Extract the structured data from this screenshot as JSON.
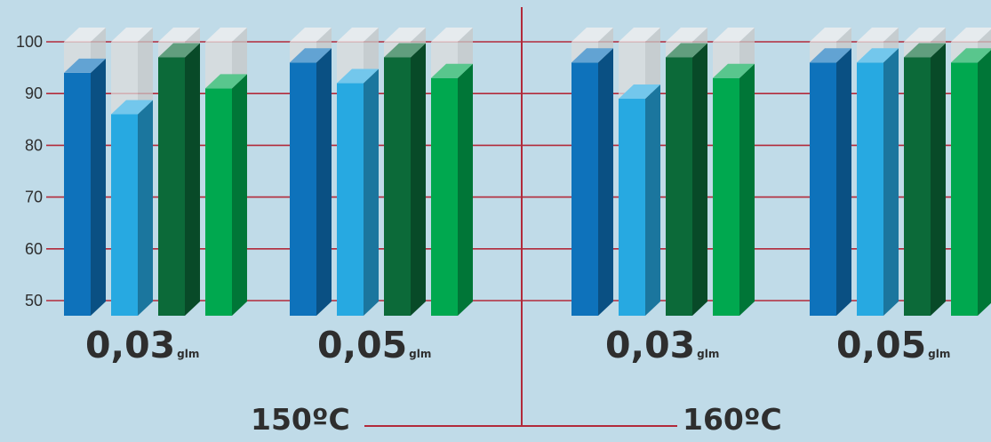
{
  "chart_data": {
    "type": "bar",
    "ylim": [
      47,
      100
    ],
    "yticks": [
      50,
      60,
      70,
      80,
      90,
      100
    ],
    "grid": true,
    "style": "3d",
    "colors": {
      "background": "#c0dbe8",
      "grid": "#b22a3a",
      "label": "#2e2e2e",
      "ghost": "#dcdcdc",
      "series": [
        "#0e72bb",
        "#27a9e1",
        "#0c6a39",
        "#00a84f"
      ]
    },
    "panels": [
      {
        "temperature": "150ºC",
        "groups": [
          {
            "label": "0,03",
            "unit": "glm",
            "values": [
              94,
              86,
              97,
              91
            ]
          },
          {
            "label": "0,05",
            "unit": "glm",
            "values": [
              96,
              92,
              97,
              93
            ]
          }
        ]
      },
      {
        "temperature": "160ºC",
        "groups": [
          {
            "label": "0,03",
            "unit": "glm",
            "values": [
              96,
              89,
              97,
              93
            ]
          },
          {
            "label": "0,05",
            "unit": "glm",
            "values": [
              96,
              96,
              97,
              96
            ]
          }
        ]
      }
    ]
  }
}
